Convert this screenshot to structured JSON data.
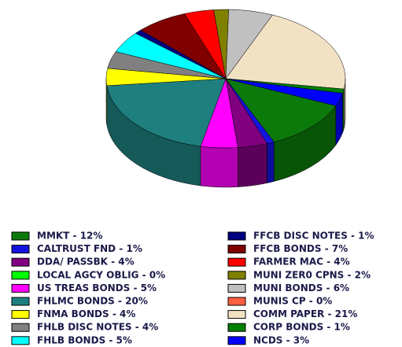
{
  "chart_data": {
    "type": "pie3d",
    "categories": [
      "MMKT - 12%",
      "CALTRUST FND - 1%",
      "DDA/ PASSBK - 4%",
      "LOCAL AGCY OBLIG - 0%",
      "US TREAS BONDS - 5%",
      "FHLMC BONDS - 20%",
      "FNMA BONDS - 4%",
      "FHLB DISC NOTES - 4%",
      "FHLB BONDS - 5%",
      "FFCB DISC NOTES - 1%",
      "FFCB BONDS - 7%",
      "FARMER MAC - 4%",
      "MUNI ZER0 CPNS - 2%",
      "MUNI BONDS - 6%",
      "MUNIS CP - 0%",
      "COMM PAPER - 21%",
      "CORP BONDS - 1%",
      "NCDS - 3%"
    ],
    "values": [
      12,
      1,
      4,
      0,
      5,
      20,
      4,
      4,
      5,
      1,
      7,
      4,
      2,
      6,
      0,
      21,
      1,
      3
    ],
    "colors": [
      "#0b7a0b",
      "#1414e0",
      "#800080",
      "#00ff00",
      "#ff00ff",
      "#1f7f7f",
      "#ffff00",
      "#808080",
      "#00ffff",
      "#000080",
      "#800000",
      "#ff0000",
      "#808000",
      "#c0c0c0",
      "#ff6040",
      "#f2e2c4",
      "#008000",
      "#0000ff"
    ]
  }
}
